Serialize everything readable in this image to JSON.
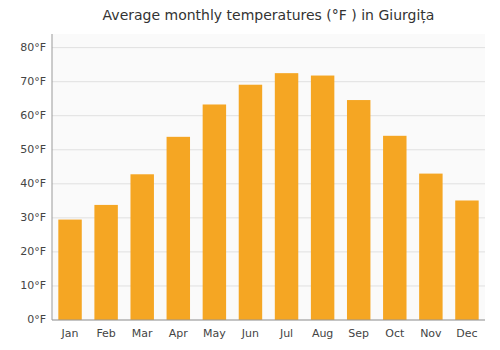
{
  "chart_data": {
    "type": "bar",
    "title": "Average monthly temperatures (°F ) in Giurgița",
    "categories": [
      "Jan",
      "Feb",
      "Mar",
      "Apr",
      "May",
      "Jun",
      "Jul",
      "Aug",
      "Sep",
      "Oct",
      "Nov",
      "Dec"
    ],
    "values": [
      29.5,
      33.8,
      42.8,
      53.8,
      63.3,
      69.1,
      72.5,
      71.8,
      64.6,
      54.1,
      43.0,
      35.1
    ],
    "color": "#F5A623",
    "ylim": [
      0,
      84
    ],
    "yticks": [
      {
        "value": 0,
        "label": "0°F"
      },
      {
        "value": 10,
        "label": "10°F"
      },
      {
        "value": 20,
        "label": "20°F"
      },
      {
        "value": 30,
        "label": "30°F"
      },
      {
        "value": 40,
        "label": "40°F"
      },
      {
        "value": 50,
        "label": "50°F"
      },
      {
        "value": 60,
        "label": "60°F"
      },
      {
        "value": 70,
        "label": "70°F"
      },
      {
        "value": 80,
        "label": "80°F"
      }
    ],
    "grid": true
  }
}
